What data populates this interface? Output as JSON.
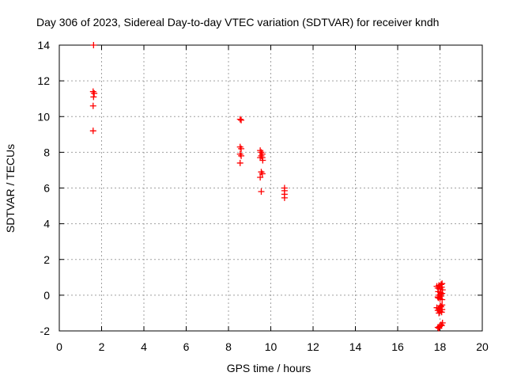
{
  "chart_data": {
    "type": "scatter",
    "title": "Day 306 of 2023, Sidereal Day-to-day VTEC variation (SDTVAR) for receiver kndh",
    "xlabel": "GPS time / hours",
    "ylabel": "SDTVAR / TECUs",
    "xlim": [
      0,
      20
    ],
    "ylim": [
      -2,
      14
    ],
    "xticks": [
      0,
      2,
      4,
      6,
      8,
      10,
      12,
      14,
      16,
      18,
      20
    ],
    "yticks": [
      -2,
      0,
      2,
      4,
      6,
      8,
      10,
      12,
      14
    ],
    "grid": true,
    "legend": "none",
    "marker": "plus",
    "color": "#ff0000",
    "series": [
      {
        "name": "SDTVAR",
        "points": [
          [
            1.62,
            14.0
          ],
          [
            1.6,
            11.4
          ],
          [
            1.65,
            11.3
          ],
          [
            1.62,
            11.1
          ],
          [
            1.6,
            10.6
          ],
          [
            1.6,
            9.2
          ],
          [
            8.55,
            9.85
          ],
          [
            8.6,
            9.8
          ],
          [
            8.55,
            8.3
          ],
          [
            8.6,
            8.2
          ],
          [
            8.55,
            7.9
          ],
          [
            8.6,
            7.8
          ],
          [
            8.55,
            7.4
          ],
          [
            9.5,
            8.1
          ],
          [
            9.55,
            8.0
          ],
          [
            9.6,
            7.9
          ],
          [
            9.55,
            7.8
          ],
          [
            9.6,
            7.7
          ],
          [
            9.5,
            7.7
          ],
          [
            9.62,
            7.55
          ],
          [
            9.55,
            6.9
          ],
          [
            9.6,
            6.8
          ],
          [
            9.5,
            6.6
          ],
          [
            9.55,
            5.8
          ],
          [
            10.65,
            6.0
          ],
          [
            10.65,
            5.85
          ],
          [
            10.65,
            5.65
          ],
          [
            10.65,
            5.45
          ],
          [
            17.85,
            0.5
          ],
          [
            17.95,
            0.55
          ],
          [
            18.05,
            0.6
          ],
          [
            18.1,
            0.65
          ],
          [
            17.9,
            0.4
          ],
          [
            18.0,
            0.35
          ],
          [
            18.08,
            0.45
          ],
          [
            18.12,
            0.3
          ],
          [
            17.92,
            0.2
          ],
          [
            18.02,
            0.15
          ],
          [
            18.1,
            0.1
          ],
          [
            17.95,
            0.0
          ],
          [
            18.05,
            -0.05
          ],
          [
            17.9,
            -0.1
          ],
          [
            18.0,
            -0.2
          ],
          [
            18.1,
            -0.25
          ],
          [
            17.92,
            -0.15
          ],
          [
            18.04,
            0.05
          ],
          [
            17.85,
            -0.7
          ],
          [
            17.95,
            -0.75
          ],
          [
            18.05,
            -0.65
          ],
          [
            18.1,
            -0.55
          ],
          [
            17.9,
            -0.85
          ],
          [
            18.0,
            -0.9
          ],
          [
            18.08,
            -0.95
          ],
          [
            17.95,
            -1.0
          ],
          [
            18.1,
            -0.8
          ],
          [
            18.02,
            -0.6
          ],
          [
            17.9,
            -1.8
          ],
          [
            17.98,
            -1.75
          ],
          [
            18.05,
            -1.65
          ],
          [
            18.12,
            -1.55
          ],
          [
            17.95,
            -1.85
          ],
          [
            18.08,
            -1.7
          ]
        ]
      }
    ]
  }
}
